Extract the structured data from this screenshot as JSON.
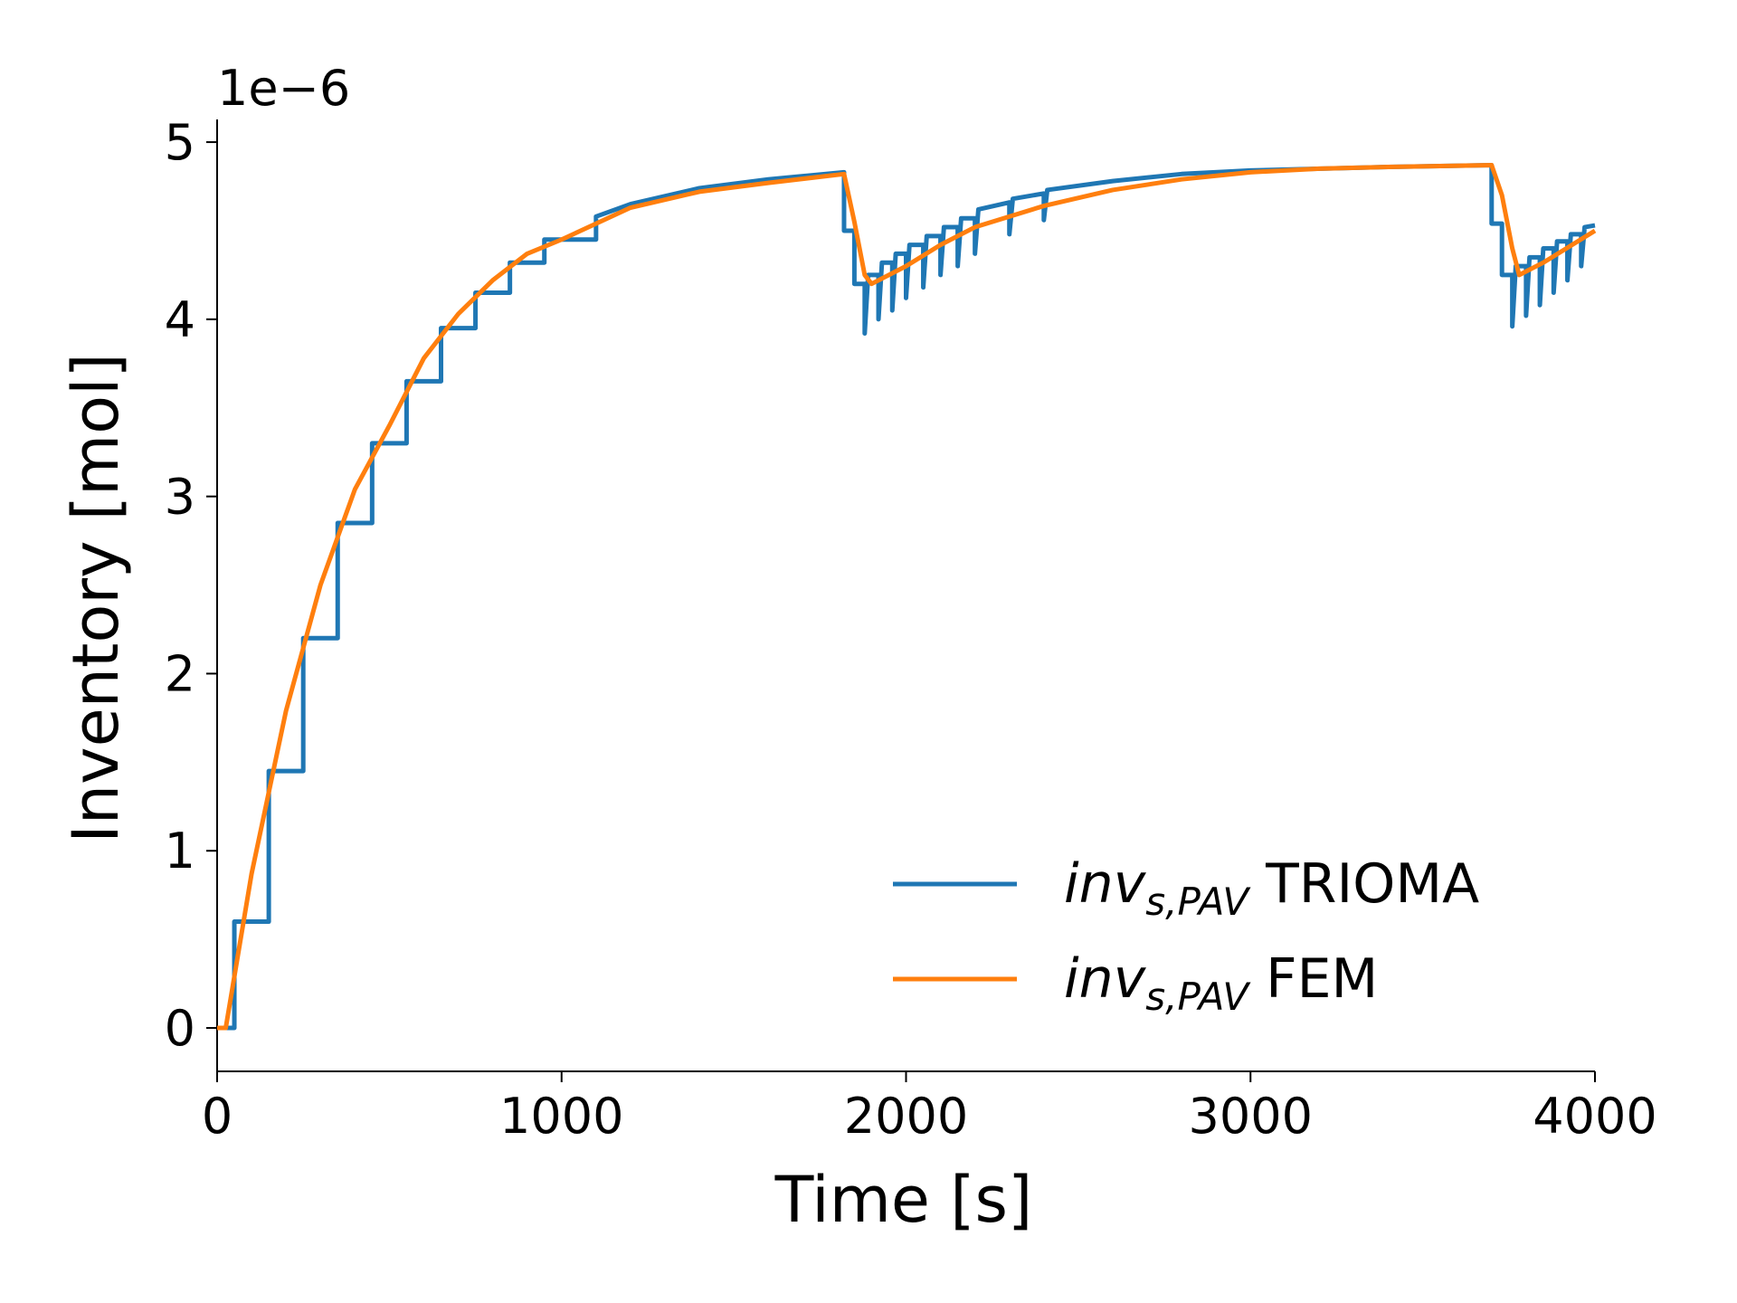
{
  "chart_data": {
    "type": "line",
    "xlabel": "Time [s]",
    "ylabel": "Inventory [mol]",
    "offset_text": "1e−6",
    "xlim": [
      0,
      4000
    ],
    "xticks": [
      0,
      1000,
      2000,
      3000,
      4000
    ],
    "ylim": [
      -0.245,
      5.128
    ],
    "yticks": [
      0,
      1,
      2,
      3,
      4,
      5
    ],
    "legend": "lower right",
    "series": [
      {
        "name": "inv_{s,PAV} TRIOMA",
        "color": "#1f77b4",
        "x": [
          0,
          50,
          50,
          150,
          150,
          250,
          250,
          350,
          350,
          450,
          450,
          550,
          550,
          650,
          650,
          750,
          750,
          850,
          850,
          950,
          950,
          1100,
          1100,
          1200,
          1400,
          1600,
          1820,
          1820,
          1850,
          1850,
          1880,
          1880,
          1890,
          1920,
          1920,
          1930,
          1960,
          1960,
          1970,
          2000,
          2000,
          2010,
          2050,
          2050,
          2060,
          2100,
          2100,
          2110,
          2150,
          2150,
          2160,
          2200,
          2200,
          2210,
          2300,
          2300,
          2310,
          2400,
          2400,
          2410,
          2600,
          2800,
          3000,
          3400,
          3700,
          3700,
          3730,
          3730,
          3760,
          3760,
          3770,
          3800,
          3800,
          3810,
          3840,
          3840,
          3850,
          3880,
          3880,
          3890,
          3920,
          3920,
          3930,
          3960,
          3960,
          3970,
          4000
        ],
        "values": [
          0,
          0,
          0.6,
          0.6,
          1.45,
          1.45,
          2.2,
          2.2,
          2.85,
          2.85,
          3.3,
          3.3,
          3.65,
          3.65,
          3.95,
          3.95,
          4.15,
          4.15,
          4.32,
          4.32,
          4.45,
          4.45,
          4.58,
          4.65,
          4.74,
          4.79,
          4.83,
          4.5,
          4.5,
          4.2,
          4.2,
          3.92,
          4.25,
          4.25,
          4.0,
          4.32,
          4.32,
          4.05,
          4.37,
          4.37,
          4.12,
          4.42,
          4.42,
          4.18,
          4.47,
          4.47,
          4.25,
          4.52,
          4.52,
          4.3,
          4.57,
          4.57,
          4.37,
          4.62,
          4.66,
          4.48,
          4.68,
          4.71,
          4.56,
          4.73,
          4.78,
          4.82,
          4.84,
          4.86,
          4.87,
          4.54,
          4.54,
          4.25,
          4.25,
          3.96,
          4.3,
          4.3,
          4.02,
          4.35,
          4.35,
          4.08,
          4.4,
          4.4,
          4.15,
          4.44,
          4.44,
          4.22,
          4.48,
          4.48,
          4.3,
          4.52,
          4.53
        ]
      },
      {
        "name": "inv_{s,PAV} FEM",
        "color": "#ff7f0e",
        "x": [
          0,
          25,
          100,
          200,
          300,
          400,
          500,
          600,
          700,
          800,
          900,
          1000,
          1200,
          1400,
          1600,
          1820,
          1850,
          1880,
          1900,
          2000,
          2100,
          2200,
          2400,
          2600,
          2800,
          3000,
          3200,
          3400,
          3700,
          3730,
          3760,
          3780,
          3850,
          3900,
          4000
        ],
        "values": [
          0,
          0,
          0.87,
          1.79,
          2.5,
          3.04,
          3.4,
          3.78,
          4.03,
          4.22,
          4.37,
          4.45,
          4.63,
          4.72,
          4.77,
          4.82,
          4.55,
          4.25,
          4.2,
          4.3,
          4.42,
          4.52,
          4.64,
          4.73,
          4.79,
          4.83,
          4.85,
          4.86,
          4.87,
          4.7,
          4.4,
          4.25,
          4.32,
          4.38,
          4.5
        ]
      }
    ]
  }
}
